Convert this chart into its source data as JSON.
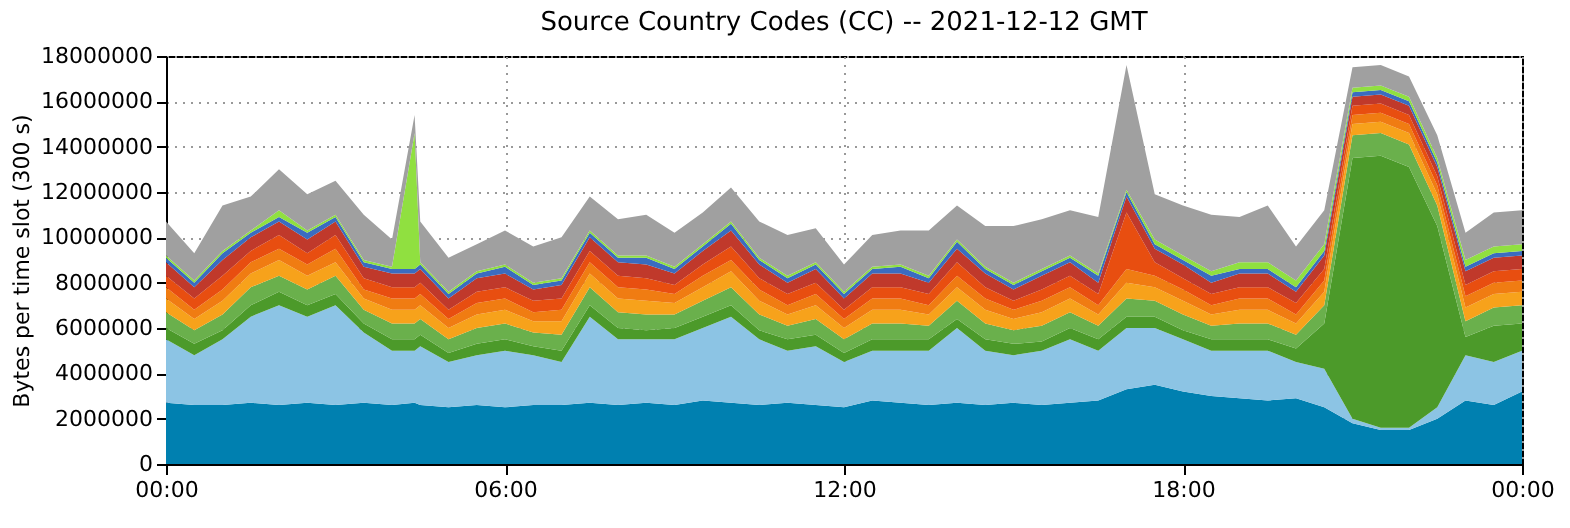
{
  "chart_data": {
    "type": "area",
    "stacked": true,
    "title": "Source Country Codes (CC) -- 2021-12-12 GMT",
    "ylabel": "Bytes per time slot (300 s)",
    "x": [
      0,
      0.5,
      1,
      1.5,
      2,
      2.5,
      3,
      3.5,
      4,
      4.4,
      4.5,
      5,
      5.5,
      6,
      6.5,
      7,
      7.5,
      8,
      8.5,
      9,
      9.5,
      10,
      10.5,
      11,
      11.5,
      12,
      12.5,
      13,
      13.5,
      14,
      14.5,
      15,
      15.5,
      16,
      16.5,
      17,
      17.5,
      18,
      18.5,
      19,
      19.5,
      20,
      20.5,
      21,
      21.5,
      22,
      22.5,
      23,
      23.5,
      24
    ],
    "xlim": [
      0,
      24
    ],
    "xticks": [
      {
        "value": 0,
        "label": "00:00"
      },
      {
        "value": 6,
        "label": "06:00"
      },
      {
        "value": 12,
        "label": "12:00"
      },
      {
        "value": 18,
        "label": "18:00"
      },
      {
        "value": 24,
        "label": "00:00"
      }
    ],
    "ylim": [
      0,
      18000000
    ],
    "yticks": [
      0,
      2000000,
      4000000,
      6000000,
      8000000,
      10000000,
      12000000,
      14000000,
      16000000,
      18000000
    ],
    "grid": true,
    "legend": false,
    "series": [
      {
        "color": "#0080b0",
        "values": [
          2700000,
          2600000,
          2600000,
          2700000,
          2600000,
          2700000,
          2600000,
          2700000,
          2600000,
          2700000,
          2600000,
          2500000,
          2600000,
          2500000,
          2600000,
          2600000,
          2700000,
          2600000,
          2700000,
          2600000,
          2800000,
          2700000,
          2600000,
          2700000,
          2600000,
          2500000,
          2800000,
          2700000,
          2600000,
          2700000,
          2600000,
          2700000,
          2600000,
          2700000,
          2800000,
          3300000,
          3500000,
          3200000,
          3000000,
          2900000,
          2800000,
          2900000,
          2500000,
          1800000,
          1500000,
          1500000,
          2000000,
          2800000,
          2600000,
          3200000
        ]
      },
      {
        "color": "#8cc4e4",
        "values": [
          2800000,
          2200000,
          2900000,
          3800000,
          4400000,
          3800000,
          4400000,
          3100000,
          2400000,
          2300000,
          2600000,
          2000000,
          2200000,
          2500000,
          2200000,
          1900000,
          3800000,
          2900000,
          2800000,
          2900000,
          3200000,
          3800000,
          2900000,
          2300000,
          2600000,
          2000000,
          2200000,
          2300000,
          2400000,
          3300000,
          2400000,
          2100000,
          2400000,
          2800000,
          2200000,
          2700000,
          2500000,
          2300000,
          2000000,
          2100000,
          2200000,
          1600000,
          1700000,
          200000,
          100000,
          100000,
          500000,
          2000000,
          1900000,
          1800000
        ]
      },
      {
        "color": "#4c9a2a",
        "values": [
          500000,
          500000,
          400000,
          500000,
          600000,
          500000,
          500000,
          400000,
          500000,
          500000,
          500000,
          400000,
          500000,
          500000,
          400000,
          500000,
          500000,
          500000,
          400000,
          500000,
          500000,
          500000,
          400000,
          500000,
          500000,
          400000,
          500000,
          500000,
          500000,
          400000,
          500000,
          500000,
          400000,
          500000,
          500000,
          500000,
          500000,
          400000,
          500000,
          500000,
          500000,
          600000,
          2000000,
          11500000,
          12000000,
          11500000,
          8000000,
          800000,
          1600000,
          1200000
        ]
      },
      {
        "color": "#6ab04c",
        "values": [
          700000,
          600000,
          700000,
          800000,
          700000,
          700000,
          800000,
          600000,
          700000,
          700000,
          700000,
          600000,
          700000,
          700000,
          600000,
          700000,
          800000,
          700000,
          700000,
          600000,
          700000,
          800000,
          700000,
          600000,
          700000,
          600000,
          700000,
          700000,
          600000,
          800000,
          700000,
          600000,
          700000,
          700000,
          600000,
          800000,
          700000,
          700000,
          600000,
          700000,
          700000,
          600000,
          800000,
          1000000,
          1000000,
          1000000,
          900000,
          700000,
          800000,
          800000
        ]
      },
      {
        "color": "#f7a21b",
        "values": [
          600000,
          500000,
          600000,
          600000,
          700000,
          600000,
          600000,
          500000,
          600000,
          600000,
          600000,
          500000,
          600000,
          600000,
          500000,
          600000,
          600000,
          600000,
          600000,
          500000,
          600000,
          700000,
          600000,
          500000,
          600000,
          500000,
          600000,
          600000,
          500000,
          600000,
          600000,
          500000,
          600000,
          600000,
          500000,
          700000,
          600000,
          600000,
          500000,
          600000,
          600000,
          500000,
          600000,
          500000,
          500000,
          500000,
          500000,
          600000,
          600000,
          600000
        ]
      },
      {
        "color": "#f07c12",
        "values": [
          500000,
          400000,
          500000,
          500000,
          500000,
          500000,
          600000,
          400000,
          500000,
          500000,
          500000,
          400000,
          500000,
          500000,
          400000,
          500000,
          500000,
          500000,
          500000,
          400000,
          500000,
          500000,
          500000,
          400000,
          500000,
          400000,
          500000,
          500000,
          400000,
          500000,
          500000,
          400000,
          500000,
          500000,
          400000,
          600000,
          500000,
          500000,
          400000,
          500000,
          500000,
          400000,
          500000,
          400000,
          400000,
          400000,
          400000,
          500000,
          500000,
          500000
        ]
      },
      {
        "color": "#e84e10",
        "values": [
          500000,
          500000,
          600000,
          500000,
          600000,
          500000,
          600000,
          500000,
          500000,
          500000,
          500000,
          400000,
          500000,
          500000,
          500000,
          500000,
          500000,
          500000,
          500000,
          400000,
          500000,
          600000,
          500000,
          500000,
          500000,
          400000,
          500000,
          500000,
          500000,
          600000,
          500000,
          400000,
          500000,
          500000,
          500000,
          2500000,
          600000,
          500000,
          500000,
          500000,
          500000,
          500000,
          500000,
          400000,
          400000,
          400000,
          400000,
          500000,
          500000,
          500000
        ]
      },
      {
        "color": "#c0392b",
        "values": [
          600000,
          500000,
          700000,
          600000,
          600000,
          600000,
          600000,
          500000,
          600000,
          600000,
          600000,
          500000,
          600000,
          600000,
          500000,
          600000,
          600000,
          600000,
          600000,
          500000,
          600000,
          700000,
          600000,
          500000,
          600000,
          500000,
          600000,
          600000,
          500000,
          600000,
          600000,
          500000,
          600000,
          600000,
          500000,
          700000,
          600000,
          600000,
          500000,
          600000,
          600000,
          500000,
          600000,
          400000,
          400000,
          400000,
          400000,
          600000,
          600000,
          600000
        ]
      },
      {
        "color": "#3a6cc0",
        "values": [
          200000,
          200000,
          300000,
          200000,
          200000,
          300000,
          200000,
          200000,
          200000,
          200000,
          200000,
          200000,
          200000,
          300000,
          200000,
          200000,
          200000,
          200000,
          300000,
          200000,
          200000,
          300000,
          200000,
          200000,
          200000,
          200000,
          200000,
          300000,
          200000,
          300000,
          200000,
          200000,
          200000,
          200000,
          300000,
          200000,
          200000,
          200000,
          300000,
          200000,
          200000,
          200000,
          200000,
          200000,
          200000,
          200000,
          200000,
          200000,
          200000,
          200000
        ]
      },
      {
        "color": "#90e040",
        "values": [
          100000,
          100000,
          100000,
          100000,
          300000,
          100000,
          100000,
          100000,
          100000,
          6000000,
          100000,
          100000,
          100000,
          100000,
          100000,
          100000,
          100000,
          100000,
          100000,
          100000,
          100000,
          100000,
          100000,
          100000,
          100000,
          100000,
          100000,
          100000,
          100000,
          100000,
          100000,
          100000,
          100000,
          100000,
          100000,
          100000,
          200000,
          200000,
          200000,
          300000,
          300000,
          300000,
          300000,
          200000,
          200000,
          200000,
          200000,
          300000,
          300000,
          300000
        ]
      },
      {
        "color": "#a0a0a0",
        "values": [
          1500000,
          1200000,
          2000000,
          1500000,
          1800000,
          1600000,
          1500000,
          2000000,
          1200000,
          800000,
          1800000,
          1500000,
          1200000,
          1500000,
          1600000,
          1800000,
          1500000,
          1600000,
          1800000,
          1500000,
          1400000,
          1500000,
          1600000,
          1800000,
          1500000,
          1200000,
          1400000,
          1500000,
          2000000,
          1500000,
          1800000,
          2500000,
          2200000,
          2000000,
          2500000,
          5500000,
          2000000,
          2200000,
          2500000,
          2000000,
          2500000,
          1500000,
          1500000,
          900000,
          900000,
          900000,
          1000000,
          1200000,
          1500000,
          1500000
        ]
      }
    ]
  }
}
